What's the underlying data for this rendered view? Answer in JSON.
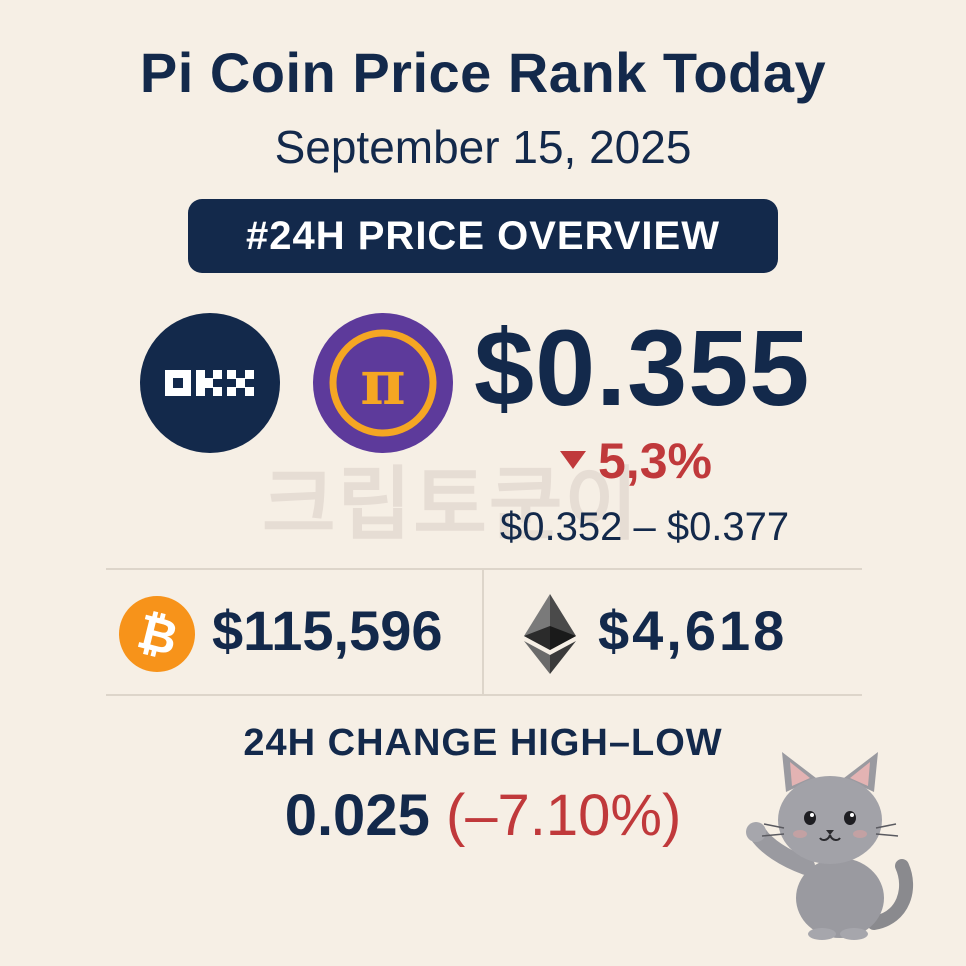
{
  "header": {
    "title": "Pi Coin Price Rank Today",
    "date": "September 15, 2025",
    "badge": "#24H PRICE OVERVIEW"
  },
  "pi": {
    "price": "$0.355",
    "change": "5,3%",
    "change_direction": "down",
    "range": "$0.352 – $0.377",
    "exchange_logo_text": "OKX",
    "coin_symbol": "π"
  },
  "watermark": "크립토쿤이",
  "btc": {
    "icon": "bitcoin-icon",
    "price": "$115,596"
  },
  "eth": {
    "icon": "ethereum-icon",
    "price": "$4,618"
  },
  "high_low": {
    "label": "24H CHANGE HIGH–LOW",
    "value": "0.025",
    "percent": "(–7.10%)"
  },
  "colors": {
    "navy": "#13294b",
    "red": "#c0393b",
    "pi_purple": "#5d3a9b",
    "pi_gold": "#f5a623",
    "btc_orange": "#f7931a",
    "background": "#f6efe5"
  }
}
